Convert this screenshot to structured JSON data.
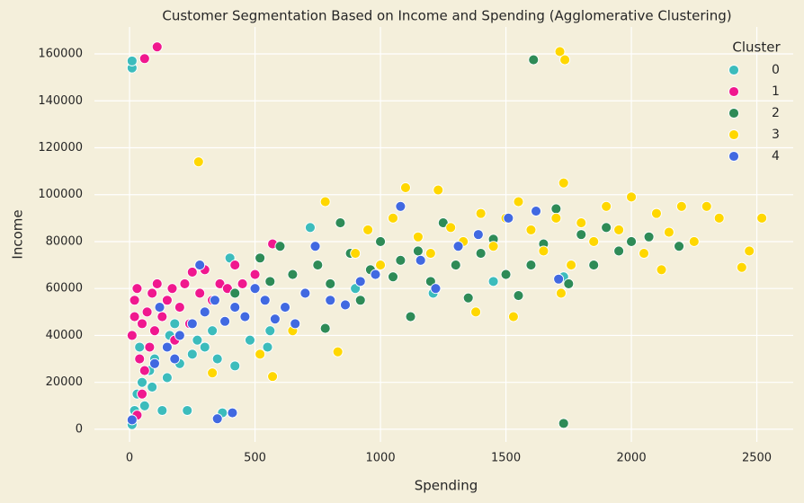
{
  "chart_data": {
    "type": "scatter",
    "title": "Customer Segmentation Based on Income and Spending (Agglomerative Clustering)",
    "x_label": "Spending",
    "y_label": "Income",
    "legend_title": "Cluster",
    "legend": "upper right",
    "grid": true,
    "xlim": [
      -140,
      2645
    ],
    "ylim": [
      -5400,
      171500
    ],
    "xticks": [
      0,
      500,
      1000,
      1500,
      2000,
      2500
    ],
    "yticks": [
      0,
      20000,
      40000,
      60000,
      80000,
      100000,
      120000,
      140000,
      160000
    ],
    "series": [
      {
        "name": "0",
        "color": "#3cbcbc",
        "x": [
          10,
          10,
          10,
          20,
          30,
          50,
          80,
          100,
          60,
          150,
          200,
          250,
          300,
          350,
          400,
          420,
          480,
          550,
          560,
          720,
          130,
          230,
          370,
          160,
          40,
          90,
          180,
          270,
          330,
          900,
          1210,
          1450,
          1730
        ],
        "values": [
          154000,
          157000,
          2000,
          8000,
          15000,
          20000,
          25000,
          30000,
          10000,
          22000,
          28000,
          32000,
          35000,
          30000,
          73000,
          27000,
          38000,
          35000,
          42000,
          86000,
          8000,
          8000,
          7000,
          40000,
          35000,
          18000,
          45000,
          38000,
          42000,
          60000,
          58000,
          63000,
          65000
        ]
      },
      {
        "name": "1",
        "color": "#f0188e",
        "x": [
          60,
          110,
          10,
          20,
          30,
          50,
          70,
          90,
          110,
          130,
          150,
          170,
          200,
          220,
          250,
          280,
          300,
          330,
          360,
          390,
          420,
          450,
          500,
          570,
          40,
          60,
          80,
          30,
          50,
          100,
          180,
          240,
          20
        ],
        "values": [
          158000,
          163000,
          40000,
          55000,
          60000,
          45000,
          50000,
          58000,
          62000,
          48000,
          55000,
          60000,
          52000,
          62000,
          67000,
          58000,
          68000,
          55000,
          62000,
          60000,
          70000,
          62000,
          66000,
          79000,
          30000,
          25000,
          35000,
          6000,
          15000,
          42000,
          38000,
          45000,
          48000
        ]
      },
      {
        "name": "2",
        "color": "#2e8b57",
        "x": [
          420,
          520,
          560,
          600,
          650,
          700,
          750,
          800,
          840,
          880,
          920,
          960,
          1000,
          1050,
          1080,
          1120,
          1150,
          1200,
          1250,
          1300,
          1350,
          1400,
          1450,
          1500,
          1550,
          1600,
          1650,
          1700,
          1750,
          1800,
          1850,
          1900,
          1950,
          2000,
          2070,
          2190,
          1610,
          1730,
          780
        ],
        "values": [
          58000,
          73000,
          63000,
          78000,
          66000,
          58000,
          70000,
          62000,
          88000,
          75000,
          55000,
          68000,
          80000,
          65000,
          72000,
          48000,
          76000,
          63000,
          88000,
          70000,
          56000,
          75000,
          81000,
          66000,
          57000,
          70000,
          79000,
          94000,
          62000,
          83000,
          70000,
          86000,
          76000,
          80000,
          82000,
          78000,
          157500,
          2500,
          43000
        ]
      },
      {
        "name": "3",
        "color": "#ffd700",
        "x": [
          275,
          1715,
          1735,
          330,
          570,
          520,
          830,
          900,
          950,
          1000,
          1050,
          1100,
          1150,
          1200,
          1230,
          1280,
          1330,
          1380,
          1400,
          1450,
          1500,
          1530,
          1550,
          1600,
          1650,
          1700,
          1730,
          1760,
          1800,
          1850,
          1900,
          1950,
          2000,
          2050,
          2100,
          2150,
          2200,
          2250,
          2300,
          2350,
          2440,
          2470,
          2520,
          780,
          650,
          2120,
          1720
        ],
        "values": [
          114000,
          161000,
          157500,
          24000,
          22500,
          32000,
          33000,
          75000,
          85000,
          70000,
          90000,
          103000,
          82000,
          75000,
          102000,
          86000,
          80000,
          50000,
          92000,
          78000,
          90000,
          48000,
          97000,
          85000,
          76000,
          90000,
          105000,
          70000,
          88000,
          80000,
          95000,
          85000,
          99000,
          75000,
          92000,
          84000,
          95000,
          80000,
          95000,
          90000,
          69000,
          76000,
          90000,
          97000,
          42000,
          68000,
          58000
        ]
      },
      {
        "name": "4",
        "color": "#4169e1",
        "x": [
          350,
          410,
          10,
          100,
          150,
          200,
          250,
          300,
          340,
          380,
          420,
          460,
          500,
          540,
          580,
          620,
          660,
          700,
          740,
          800,
          860,
          920,
          980,
          1080,
          1160,
          1220,
          1310,
          1390,
          1510,
          1620,
          1710,
          280,
          180,
          120
        ],
        "values": [
          4500,
          7000,
          4000,
          28000,
          35000,
          40000,
          45000,
          50000,
          55000,
          46000,
          52000,
          48000,
          60000,
          55000,
          47000,
          52000,
          45000,
          58000,
          78000,
          55000,
          53000,
          63000,
          66000,
          95000,
          72000,
          60000,
          78000,
          83000,
          90000,
          93000,
          64000,
          70000,
          30000,
          52000
        ]
      }
    ]
  }
}
